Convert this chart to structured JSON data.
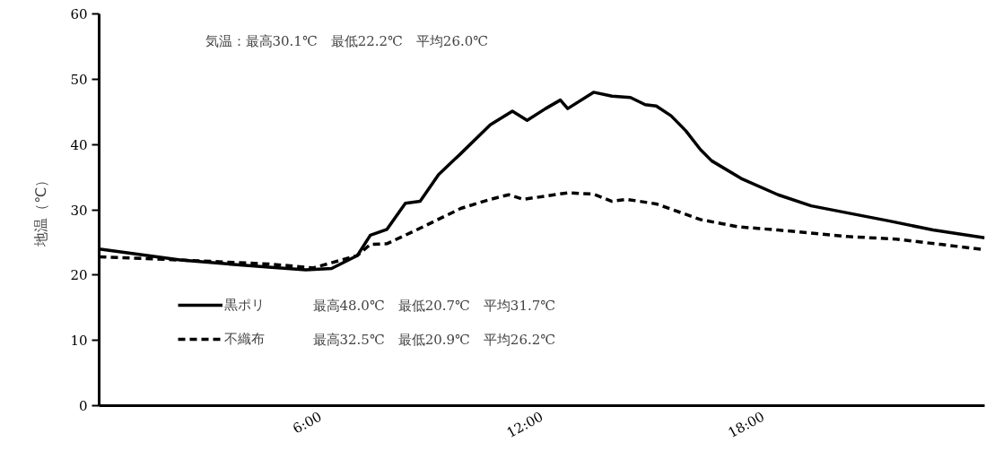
{
  "chart_data": {
    "type": "line",
    "ylabel": "地温（℃）",
    "xlim": [
      0,
      24
    ],
    "ylim": [
      0,
      60
    ],
    "xticks": [
      {
        "value": 6,
        "label": "6:00"
      },
      {
        "value": 12,
        "label": "12:00"
      },
      {
        "value": 18,
        "label": "18:00"
      }
    ],
    "yticks": [
      0,
      10,
      20,
      30,
      40,
      50,
      60
    ],
    "grid": false,
    "legend": "bottom left",
    "marker": "none",
    "annotations": [
      "気温：最高30.1℃　最低22.2℃　平均26.0℃",
      "最高48.0℃　最低20.7℃　平均31.7℃",
      "最高32.5℃　最低20.9℃　平均26.2℃"
    ],
    "series": [
      {
        "name": "黒ポリ",
        "color": "#000000",
        "line_style": "solid",
        "x": [
          0,
          2.2,
          4.6,
          5.6,
          6.3,
          7.0,
          7.35,
          7.8,
          8.3,
          8.7,
          9.2,
          9.8,
          10.6,
          11.2,
          11.6,
          12.1,
          12.5,
          12.7,
          13.4,
          13.9,
          14.4,
          14.8,
          15.1,
          15.5,
          15.9,
          16.3,
          16.6,
          17.4,
          18.4,
          19.3,
          20.3,
          21.4,
          22.6,
          24.0
        ],
        "values": [
          24.0,
          22.3,
          21.2,
          20.8,
          21.0,
          23.0,
          26.1,
          27.0,
          31.0,
          31.3,
          35.4,
          38.6,
          43.0,
          45.1,
          43.7,
          45.5,
          46.8,
          45.5,
          48.0,
          47.4,
          47.2,
          46.1,
          45.9,
          44.4,
          42.1,
          39.2,
          37.5,
          34.8,
          32.3,
          30.6,
          29.5,
          28.3,
          26.9,
          25.7
        ]
      },
      {
        "name": "不織布",
        "color": "#000000",
        "line_style": "dashed",
        "x": [
          0,
          2.2,
          4.6,
          5.8,
          7.0,
          7.35,
          7.8,
          8.6,
          9.8,
          10.6,
          11.1,
          11.5,
          12.7,
          13.4,
          13.9,
          14.3,
          15.1,
          16.3,
          17.3,
          18.4,
          20.3,
          21.6,
          22.8,
          24.0
        ],
        "values": [
          22.8,
          22.3,
          21.7,
          21.1,
          23.0,
          24.7,
          24.8,
          26.9,
          30.2,
          31.6,
          32.3,
          31.6,
          32.6,
          32.4,
          31.3,
          31.6,
          30.9,
          28.5,
          27.4,
          26.9,
          25.9,
          25.5,
          24.7,
          23.9
        ]
      }
    ]
  }
}
